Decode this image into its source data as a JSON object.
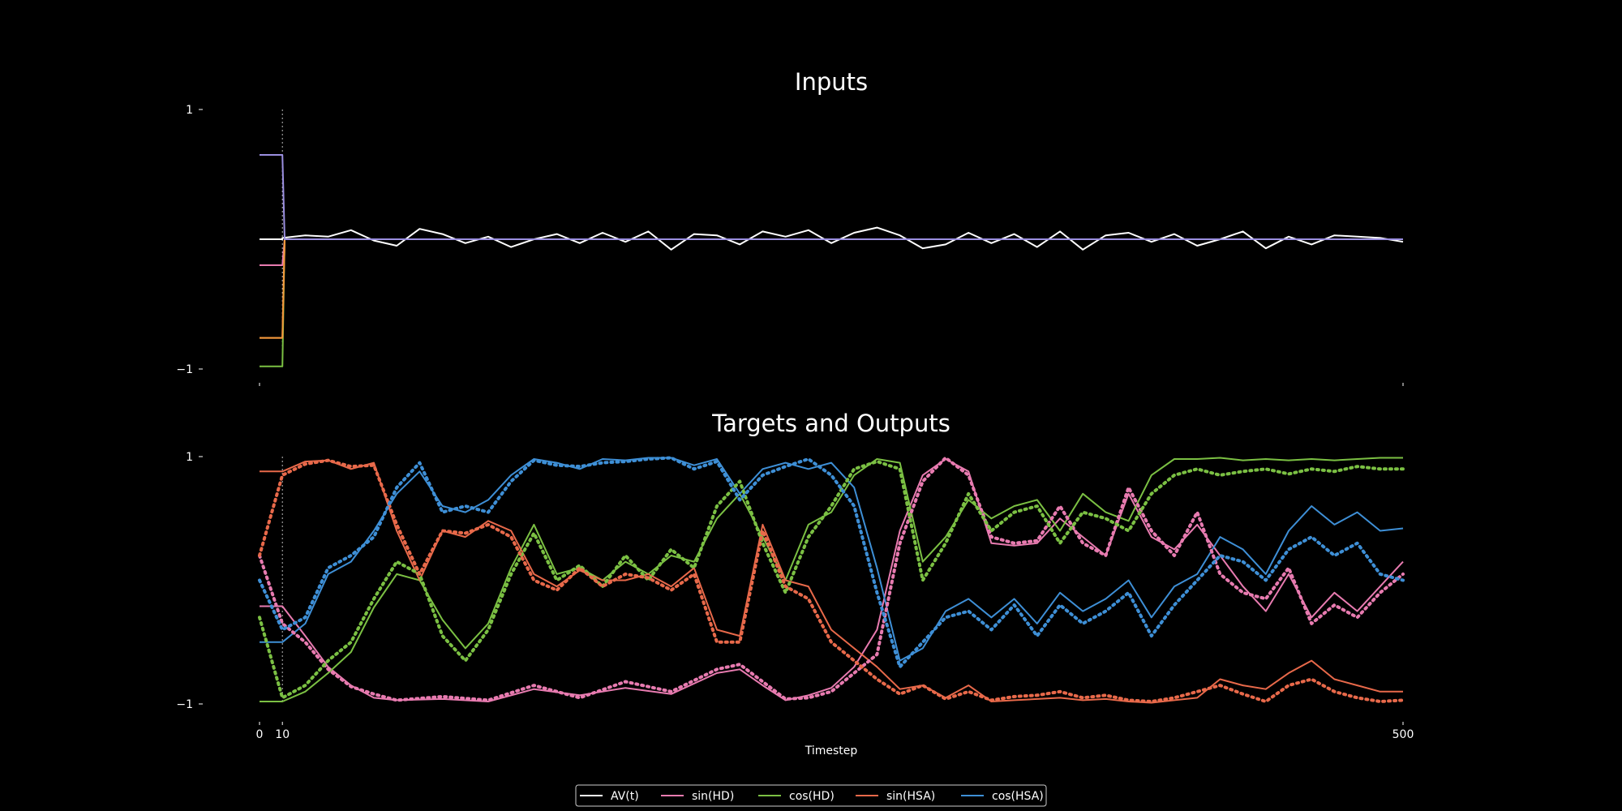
{
  "chart_data": [
    {
      "type": "line",
      "title": "Inputs",
      "xlabel": "",
      "ylabel": "",
      "xlim": [
        0,
        500
      ],
      "ylim": [
        -1,
        1
      ],
      "y_ticks": [
        1,
        -1
      ],
      "y_tick_labels": [
        "1",
        "−1"
      ],
      "x_ticks": [
        0,
        500
      ],
      "x_tick_labels": [
        "",
        ""
      ],
      "marker_x": 10,
      "series": [
        {
          "name": "AV(t)",
          "color": "#ffffff",
          "style": "solid",
          "x": [
            0,
            10,
            10,
            20,
            30,
            40,
            50,
            60,
            70,
            80,
            90,
            100,
            110,
            120,
            130,
            140,
            150,
            160,
            170,
            180,
            190,
            200,
            210,
            220,
            230,
            240,
            250,
            260,
            270,
            280,
            290,
            300,
            310,
            320,
            330,
            340,
            350,
            360,
            370,
            380,
            390,
            400,
            410,
            420,
            430,
            440,
            450,
            460,
            470,
            480,
            490,
            500
          ],
          "values": [
            0,
            0,
            0.01,
            0.03,
            0.02,
            0.07,
            -0.01,
            -0.05,
            0.08,
            0.04,
            -0.03,
            0.02,
            -0.06,
            0.0,
            0.04,
            -0.03,
            0.05,
            -0.02,
            0.06,
            -0.08,
            0.04,
            0.03,
            -0.04,
            0.06,
            0.02,
            0.07,
            -0.03,
            0.05,
            0.09,
            0.03,
            -0.07,
            -0.04,
            0.05,
            -0.03,
            0.04,
            -0.06,
            0.06,
            -0.08,
            0.03,
            0.05,
            -0.02,
            0.04,
            -0.05,
            0.0,
            0.06,
            -0.07,
            0.02,
            -0.04,
            0.03,
            0.02,
            0.01,
            -0.02
          ]
        },
        {
          "name": "sin(HD)",
          "color": "#e87bb0",
          "style": "solid",
          "x": [
            0,
            10,
            11
          ],
          "values": [
            -0.2,
            -0.2,
            0
          ]
        },
        {
          "name": "cos(HD)",
          "color": "#7bc043",
          "style": "solid",
          "x": [
            0,
            10,
            11
          ],
          "values": [
            -0.98,
            -0.98,
            0
          ]
        },
        {
          "name": "sin(HSA)",
          "color": "#e8694a",
          "style": "solid",
          "x": [
            0,
            10,
            11
          ],
          "values": [
            -0.76,
            -0.76,
            0
          ]
        },
        {
          "name": "cos(HSA)",
          "color": "#f29a3a",
          "style": "solid",
          "x": [
            0,
            10,
            11
          ],
          "values": [
            -0.76,
            -0.76,
            0
          ]
        },
        {
          "name": "",
          "color": "#9b8fe0",
          "style": "solid",
          "x": [
            0,
            10,
            11,
            500
          ],
          "values": [
            0.65,
            0.65,
            0,
            0
          ]
        }
      ]
    },
    {
      "type": "line",
      "title": "Targets and Outputs",
      "xlabel": "Timestep",
      "ylabel": "",
      "xlim": [
        0,
        500
      ],
      "ylim": [
        -1,
        1
      ],
      "y_ticks": [
        1,
        -1
      ],
      "y_tick_labels": [
        "1",
        "−1"
      ],
      "x_ticks": [
        0,
        10,
        500
      ],
      "x_tick_labels": [
        "0",
        "10",
        "500"
      ],
      "marker_x": 10,
      "series": [
        {
          "name": "sin(HD)",
          "color": "#e87bb0",
          "style": "solid",
          "x": [
            0,
            10,
            20,
            30,
            40,
            50,
            60,
            80,
            100,
            120,
            140,
            160,
            180,
            200,
            210,
            220,
            230,
            240,
            250,
            260,
            270,
            280,
            290,
            300,
            310,
            320,
            330,
            340,
            350,
            360,
            370,
            380,
            390,
            400,
            410,
            420,
            430,
            440,
            450,
            460,
            470,
            480,
            490,
            500
          ],
          "values": [
            -0.21,
            -0.21,
            -0.45,
            -0.7,
            -0.85,
            -0.95,
            -0.97,
            -0.96,
            -0.98,
            -0.88,
            -0.93,
            -0.87,
            -0.92,
            -0.75,
            -0.72,
            -0.85,
            -0.97,
            -0.93,
            -0.87,
            -0.7,
            -0.4,
            0.4,
            0.85,
            0.98,
            0.88,
            0.3,
            0.28,
            0.3,
            0.5,
            0.35,
            0.2,
            0.7,
            0.35,
            0.25,
            0.45,
            0.2,
            -0.05,
            -0.25,
            0.05,
            -0.3,
            -0.1,
            -0.25,
            -0.05,
            0.15
          ]
        },
        {
          "name": "cos(HD)",
          "color": "#7bc043",
          "style": "solid",
          "x": [
            0,
            10,
            20,
            30,
            40,
            50,
            60,
            70,
            80,
            90,
            100,
            110,
            120,
            130,
            140,
            150,
            160,
            170,
            180,
            190,
            200,
            210,
            220,
            230,
            240,
            250,
            260,
            270,
            280,
            290,
            300,
            310,
            320,
            330,
            340,
            350,
            360,
            370,
            380,
            390,
            400,
            410,
            420,
            430,
            440,
            450,
            460,
            470,
            480,
            490,
            500
          ],
          "values": [
            -0.98,
            -0.98,
            -0.9,
            -0.75,
            -0.58,
            -0.22,
            0.05,
            0.0,
            -0.32,
            -0.55,
            -0.35,
            0.1,
            0.45,
            0.05,
            0.1,
            0.0,
            0.15,
            0.05,
            0.2,
            0.15,
            0.5,
            0.7,
            0.35,
            0.0,
            0.45,
            0.55,
            0.85,
            0.98,
            0.95,
            0.15,
            0.35,
            0.65,
            0.5,
            0.6,
            0.65,
            0.4,
            0.7,
            0.55,
            0.48,
            0.85,
            0.98,
            0.98,
            0.99,
            0.97,
            0.98,
            0.97,
            0.98,
            0.97,
            0.98,
            0.99,
            0.99
          ]
        },
        {
          "name": "sin(HSA)",
          "color": "#e8694a",
          "style": "solid",
          "x": [
            0,
            10,
            20,
            30,
            40,
            50,
            60,
            70,
            80,
            90,
            100,
            110,
            120,
            130,
            140,
            150,
            160,
            170,
            180,
            190,
            200,
            210,
            220,
            230,
            240,
            250,
            260,
            270,
            280,
            290,
            300,
            310,
            320,
            330,
            340,
            350,
            360,
            370,
            380,
            390,
            400,
            410,
            420,
            430,
            440,
            450,
            460,
            470,
            480,
            490,
            500
          ],
          "values": [
            0.88,
            0.88,
            0.96,
            0.97,
            0.9,
            0.95,
            0.4,
            0.0,
            0.4,
            0.35,
            0.48,
            0.4,
            0.05,
            -0.05,
            0.08,
            0.0,
            0.0,
            0.05,
            -0.05,
            0.1,
            -0.4,
            -0.45,
            0.45,
            0.0,
            -0.05,
            -0.4,
            -0.55,
            -0.7,
            -0.88,
            -0.85,
            -0.95,
            -0.85,
            -0.98,
            -0.97,
            -0.96,
            -0.95,
            -0.97,
            -0.96,
            -0.98,
            -0.99,
            -0.97,
            -0.95,
            -0.8,
            -0.85,
            -0.88,
            -0.75,
            -0.65,
            -0.8,
            -0.85,
            -0.9,
            -0.9
          ]
        },
        {
          "name": "cos(HSA)",
          "color": "#3e8fd6",
          "style": "solid",
          "x": [
            0,
            10,
            20,
            30,
            40,
            50,
            60,
            70,
            80,
            90,
            100,
            110,
            120,
            130,
            140,
            150,
            160,
            170,
            180,
            190,
            200,
            210,
            220,
            230,
            240,
            250,
            260,
            270,
            280,
            290,
            300,
            310,
            320,
            330,
            340,
            350,
            360,
            370,
            380,
            390,
            400,
            410,
            420,
            430,
            440,
            450,
            460,
            470,
            480,
            490,
            500
          ],
          "values": [
            -0.5,
            -0.5,
            -0.35,
            0.05,
            0.15,
            0.4,
            0.7,
            0.88,
            0.6,
            0.55,
            0.65,
            0.85,
            0.98,
            0.95,
            0.9,
            0.98,
            0.97,
            0.99,
            0.99,
            0.93,
            0.98,
            0.7,
            0.9,
            0.95,
            0.9,
            0.95,
            0.75,
            0.1,
            -0.65,
            -0.55,
            -0.25,
            -0.15,
            -0.3,
            -0.15,
            -0.35,
            -0.1,
            -0.25,
            -0.15,
            0.0,
            -0.3,
            -0.05,
            0.05,
            0.35,
            0.25,
            0.05,
            0.4,
            0.6,
            0.45,
            0.55,
            0.4,
            0.42
          ]
        },
        {
          "name": "",
          "color": "#e87bb0",
          "style": "dotted",
          "x": [
            0,
            10,
            20,
            30,
            40,
            50,
            60,
            80,
            100,
            120,
            140,
            160,
            180,
            200,
            210,
            220,
            230,
            240,
            250,
            260,
            270,
            280,
            290,
            300,
            310,
            320,
            330,
            340,
            350,
            360,
            370,
            380,
            390,
            400,
            410,
            420,
            430,
            440,
            450,
            460,
            470,
            480,
            490,
            500
          ],
          "values": [
            0.2,
            -0.35,
            -0.5,
            -0.72,
            -0.86,
            -0.92,
            -0.97,
            -0.94,
            -0.97,
            -0.85,
            -0.95,
            -0.82,
            -0.9,
            -0.72,
            -0.68,
            -0.82,
            -0.96,
            -0.95,
            -0.9,
            -0.75,
            -0.6,
            0.3,
            0.8,
            0.99,
            0.85,
            0.35,
            0.3,
            0.32,
            0.6,
            0.3,
            0.2,
            0.75,
            0.4,
            0.2,
            0.55,
            0.05,
            -0.1,
            -0.15,
            0.1,
            -0.35,
            -0.2,
            -0.3,
            -0.1,
            0.05
          ]
        },
        {
          "name": "",
          "color": "#7bc043",
          "style": "dotted",
          "x": [
            0,
            10,
            20,
            30,
            40,
            50,
            60,
            70,
            80,
            90,
            100,
            110,
            120,
            130,
            140,
            150,
            160,
            170,
            180,
            190,
            200,
            210,
            220,
            230,
            240,
            250,
            260,
            270,
            280,
            290,
            300,
            310,
            320,
            330,
            340,
            350,
            360,
            370,
            380,
            390,
            400,
            410,
            420,
            430,
            440,
            450,
            460,
            470,
            480,
            490,
            500
          ],
          "values": [
            -0.3,
            -0.95,
            -0.85,
            -0.65,
            -0.5,
            -0.15,
            0.15,
            0.05,
            -0.45,
            -0.65,
            -0.4,
            0.05,
            0.38,
            0.0,
            0.12,
            -0.05,
            0.2,
            0.0,
            0.25,
            0.1,
            0.6,
            0.8,
            0.3,
            -0.1,
            0.35,
            0.6,
            0.9,
            0.96,
            0.9,
            0.0,
            0.3,
            0.7,
            0.4,
            0.55,
            0.6,
            0.3,
            0.55,
            0.5,
            0.4,
            0.7,
            0.85,
            0.9,
            0.85,
            0.88,
            0.9,
            0.86,
            0.9,
            0.88,
            0.92,
            0.9,
            0.9
          ]
        },
        {
          "name": "",
          "color": "#e8694a",
          "style": "dotted",
          "x": [
            0,
            10,
            20,
            30,
            40,
            50,
            60,
            70,
            80,
            90,
            100,
            110,
            120,
            130,
            140,
            150,
            160,
            170,
            180,
            190,
            200,
            210,
            220,
            230,
            240,
            250,
            260,
            270,
            280,
            290,
            300,
            310,
            320,
            330,
            340,
            350,
            360,
            370,
            380,
            390,
            400,
            410,
            420,
            430,
            440,
            450,
            460,
            470,
            480,
            490,
            500
          ],
          "values": [
            0.2,
            0.85,
            0.94,
            0.97,
            0.92,
            0.93,
            0.45,
            0.05,
            0.4,
            0.38,
            0.45,
            0.35,
            0.0,
            -0.08,
            0.1,
            -0.05,
            0.05,
            0.02,
            -0.08,
            0.05,
            -0.5,
            -0.5,
            0.4,
            -0.05,
            -0.15,
            -0.5,
            -0.65,
            -0.8,
            -0.92,
            -0.85,
            -0.96,
            -0.9,
            -0.97,
            -0.94,
            -0.93,
            -0.9,
            -0.95,
            -0.93,
            -0.97,
            -0.98,
            -0.95,
            -0.9,
            -0.85,
            -0.92,
            -0.98,
            -0.85,
            -0.8,
            -0.9,
            -0.95,
            -0.98,
            -0.97
          ]
        },
        {
          "name": "",
          "color": "#3e8fd6",
          "style": "dotted",
          "x": [
            0,
            10,
            20,
            30,
            40,
            50,
            60,
            70,
            80,
            90,
            100,
            110,
            120,
            130,
            140,
            150,
            160,
            170,
            180,
            190,
            200,
            210,
            220,
            230,
            240,
            250,
            260,
            270,
            280,
            290,
            300,
            310,
            320,
            330,
            340,
            350,
            360,
            370,
            380,
            390,
            400,
            410,
            420,
            430,
            440,
            450,
            460,
            470,
            480,
            490,
            500
          ],
          "values": [
            0.0,
            -0.4,
            -0.3,
            0.1,
            0.2,
            0.35,
            0.75,
            0.95,
            0.55,
            0.6,
            0.55,
            0.8,
            0.97,
            0.93,
            0.92,
            0.95,
            0.96,
            0.98,
            0.99,
            0.9,
            0.96,
            0.65,
            0.85,
            0.92,
            0.98,
            0.85,
            0.6,
            -0.1,
            -0.7,
            -0.5,
            -0.3,
            -0.25,
            -0.4,
            -0.2,
            -0.45,
            -0.2,
            -0.35,
            -0.25,
            -0.1,
            -0.45,
            -0.2,
            0.0,
            0.2,
            0.15,
            0.0,
            0.25,
            0.35,
            0.2,
            0.3,
            0.05,
            0.0
          ]
        }
      ]
    }
  ],
  "legend": {
    "placement": "bottom-center",
    "entries": [
      {
        "label": "AV(t)",
        "color": "#ffffff"
      },
      {
        "label": "sin(HD)",
        "color": "#e87bb0"
      },
      {
        "label": "cos(HD)",
        "color": "#7bc043"
      },
      {
        "label": "sin(HSA)",
        "color": "#e8694a"
      },
      {
        "label": "cos(HSA)",
        "color": "#3e8fd6"
      }
    ]
  }
}
